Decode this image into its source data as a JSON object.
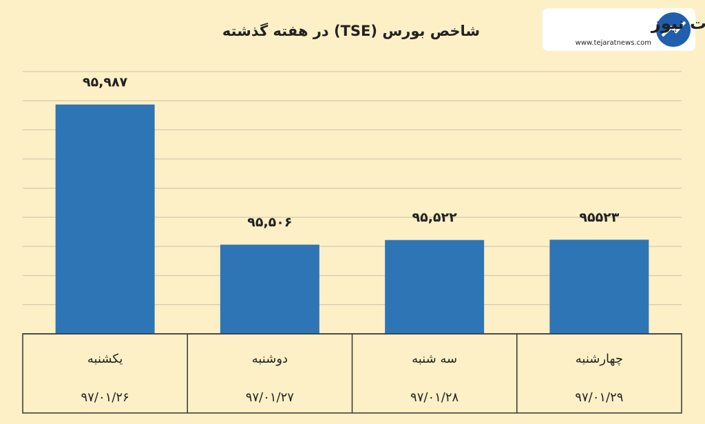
{
  "chart_data": {
    "type": "bar",
    "title": "شاخص بورس (TSE) در هفته گذشته",
    "categories": [
      "یکشنبه",
      "دوشنبه",
      "سه شنبه",
      "چهارشنبه"
    ],
    "dates": [
      "۹۷/۰۱/۲۶",
      "۹۷/۰۱/۲۷",
      "۹۷/۰۱/۲۸",
      "۹۷/۰۱/۲۹"
    ],
    "values": [
      95987,
      95506,
      95522,
      95523
    ],
    "value_labels": [
      "۹۵,۹۸۷",
      "۹۵,۵۰۶",
      "۹۵,۵۲۲",
      "۹۵۵۲۳"
    ],
    "color": "#2e75b6",
    "ylim": [
      95200,
      96100
    ],
    "yticks": [
      95300,
      95400,
      95500,
      95600,
      95700,
      95800,
      95900,
      96000,
      96100
    ],
    "grid": true,
    "show_tick_labels": false
  },
  "logo": {
    "name": "تجارت نیوز",
    "url": "www.tejaratnews.com"
  }
}
